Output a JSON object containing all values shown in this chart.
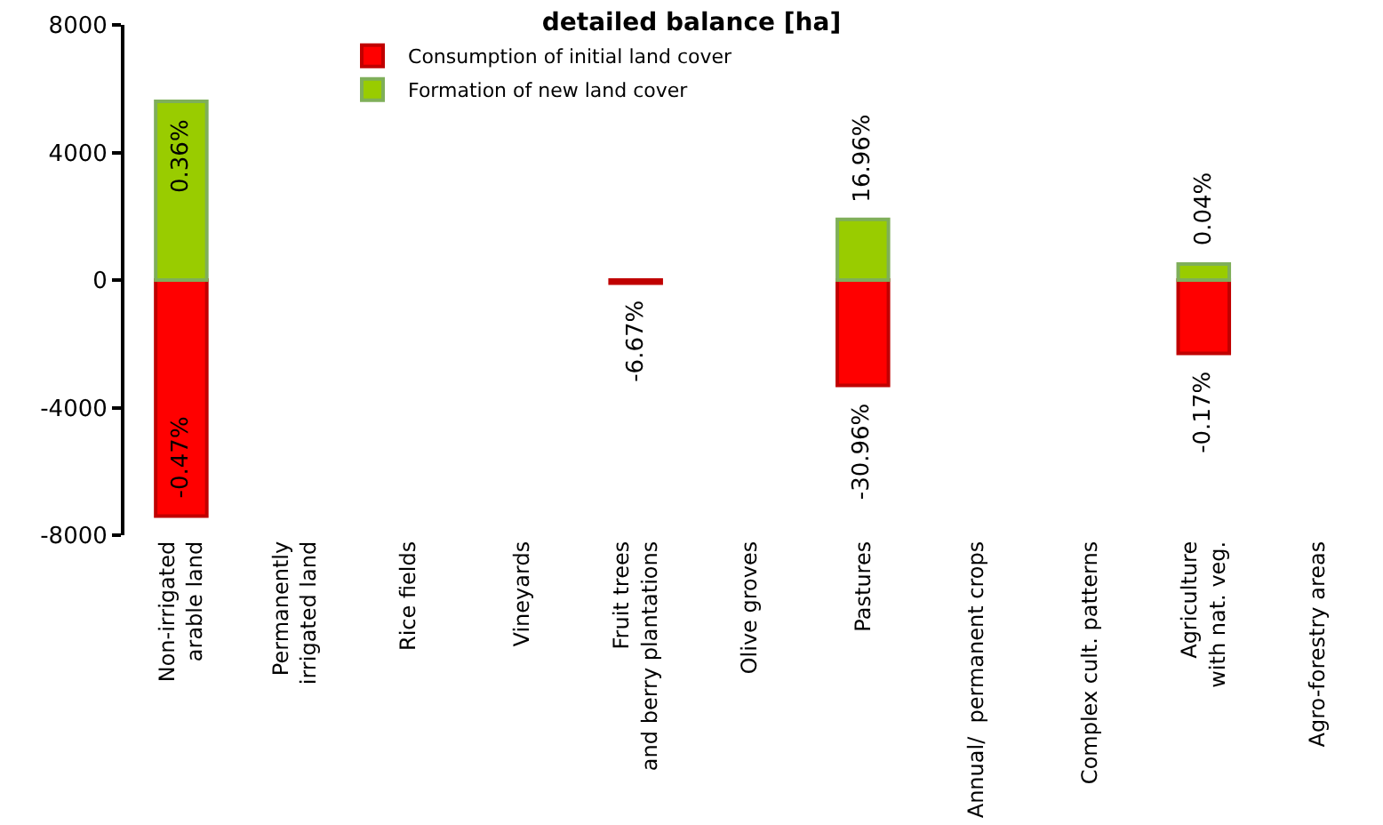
{
  "chart_data": {
    "type": "bar",
    "title": "detailed balance [ha]",
    "stacked": true,
    "categories": [
      "Non-irrigated\narable land",
      "Permanently\nirrigated land",
      "Rice fields",
      "Vineyards",
      "Fruit trees\nand berry plantations",
      "Olive groves",
      "Pastures",
      "Annual/  permanent crops",
      "Complex cult. patterns",
      "Agriculture\nwith nat. veg.",
      "Agro-forestry areas"
    ],
    "series": [
      {
        "name": "Consumption of initial land cover",
        "color": "#ff0000",
        "values": [
          -7400,
          null,
          null,
          null,
          -100,
          null,
          -3300,
          null,
          null,
          -2300,
          null
        ]
      },
      {
        "name": "Formation of new land cover",
        "color": "#99cc00",
        "values": [
          5600,
          null,
          null,
          null,
          null,
          null,
          1900,
          null,
          null,
          500,
          null
        ]
      }
    ],
    "annotations": [
      {
        "text": "-0.47%",
        "x": "Non-irrigated\narable land",
        "y": -7400
      },
      {
        "text": "0.36%",
        "x": "Non-irrigated\narable land",
        "y": 5600
      },
      {
        "text": "-6.67%",
        "x": "Fruit trees\nand berry plantations",
        "y": -100
      },
      {
        "text": "-30.96%",
        "x": "Pastures",
        "y": -3300
      },
      {
        "text": "16.96%",
        "x": "Pastures",
        "y": 1900
      },
      {
        "text": "-0.17%",
        "x": "Agriculture\nwith nat. veg.",
        "y": -2300
      },
      {
        "text": "0.04%",
        "x": "Agriculture\nwith nat. veg.",
        "y": 500
      }
    ],
    "grid": false,
    "ylim": [
      -8000,
      8000
    ],
    "yticks": [
      -8000,
      -4000,
      0,
      4000,
      8000
    ],
    "legend": "top left"
  }
}
